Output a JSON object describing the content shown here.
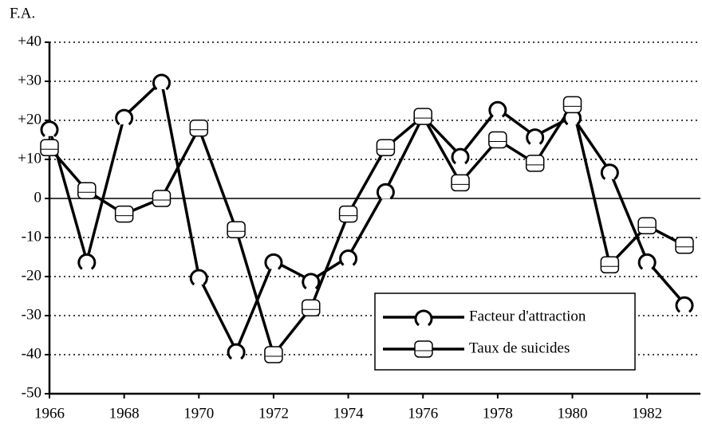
{
  "chart_data": {
    "type": "line",
    "y_label": "F.A.",
    "x": [
      1966,
      1967,
      1968,
      1969,
      1970,
      1971,
      1972,
      1973,
      1974,
      1975,
      1976,
      1977,
      1978,
      1979,
      1980,
      1981,
      1982,
      1983
    ],
    "series": [
      {
        "name": "Facteur d'attraction",
        "color": "#000000",
        "marker": "arch",
        "values": [
          18,
          -16,
          21,
          30,
          -20,
          -39,
          -16,
          -21,
          -15,
          2,
          21,
          11,
          23,
          16,
          21,
          7,
          -16,
          -27
        ]
      },
      {
        "name": "Taux de suicides",
        "color": "#000000",
        "marker": "cylinder",
        "values": [
          13,
          2,
          -4,
          0,
          18,
          -8,
          -40,
          -28,
          -4,
          13,
          21,
          4,
          15,
          9,
          24,
          -17,
          -7,
          -12
        ]
      }
    ],
    "xlim": [
      1966,
      1983
    ],
    "xticks": [
      1966,
      1968,
      1970,
      1972,
      1974,
      1976,
      1978,
      1980,
      1982
    ],
    "ylim": [
      -50,
      40
    ],
    "yticks": [
      {
        "value": 40,
        "label": "+40"
      },
      {
        "value": 30,
        "label": "+30"
      },
      {
        "value": 20,
        "label": "+20"
      },
      {
        "value": 10,
        "label": "+10"
      },
      0,
      -10,
      -20,
      -30,
      -40,
      -50
    ],
    "grid": true,
    "legend": "lower right"
  }
}
